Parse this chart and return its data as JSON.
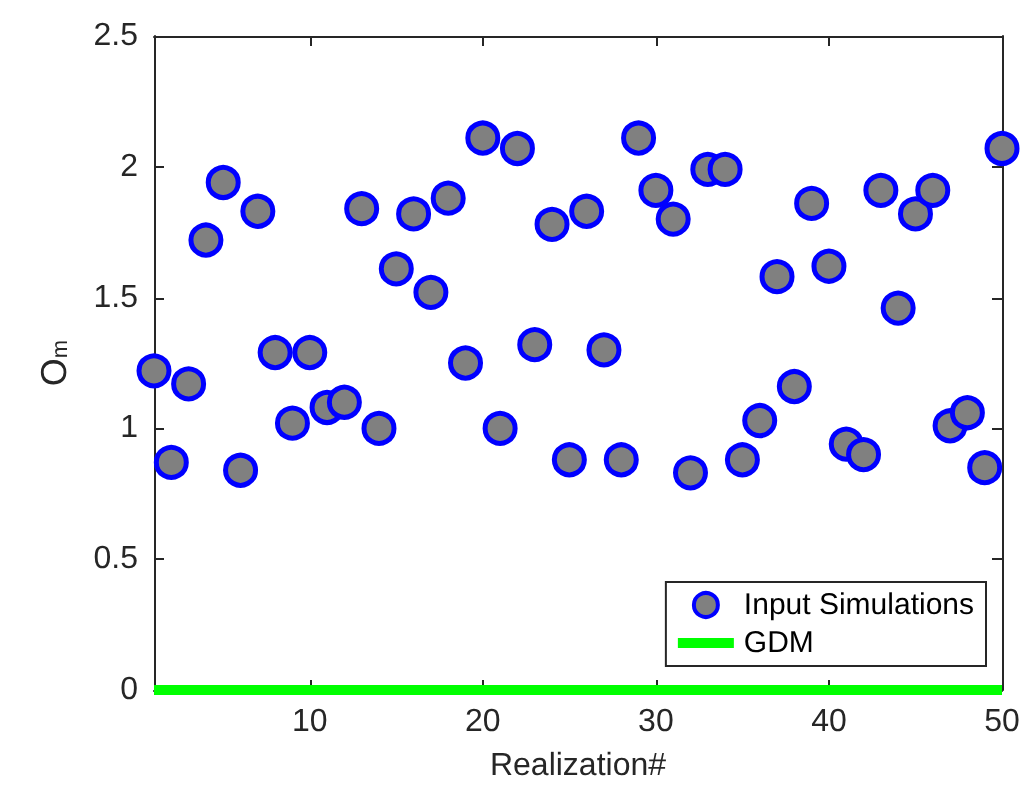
{
  "chart_data": {
    "type": "scatter",
    "xlabel": "Realization#",
    "ylabel": "O$_{m}$",
    "xlim": [
      1,
      50
    ],
    "xticks": [
      10,
      20,
      30,
      40,
      50
    ],
    "ylim": [
      0,
      2.5
    ],
    "yticks": [
      0,
      0.5,
      1,
      1.5,
      2,
      2.5
    ],
    "grid": false,
    "legend": "bottom right",
    "series": [
      {
        "name": "Input Simulations",
        "marker": "circle",
        "color": "#808080",
        "x": [
          1,
          2,
          3,
          4,
          5,
          6,
          7,
          8,
          9,
          10,
          11,
          12,
          13,
          14,
          15,
          16,
          17,
          18,
          19,
          20,
          21,
          22,
          23,
          24,
          25,
          26,
          27,
          28,
          29,
          30,
          31,
          32,
          33,
          34,
          35,
          36,
          37,
          38,
          39,
          40,
          41,
          42,
          43,
          44,
          45,
          46,
          47,
          48,
          49,
          50
        ],
        "values": [
          1.22,
          0.87,
          1.17,
          1.72,
          1.94,
          0.84,
          1.83,
          1.29,
          1.02,
          1.29,
          1.08,
          1.1,
          1.84,
          1.0,
          1.61,
          1.82,
          1.52,
          1.88,
          1.25,
          2.11,
          1.0,
          2.07,
          1.32,
          1.78,
          0.88,
          1.83,
          1.3,
          0.88,
          2.11,
          1.91,
          1.8,
          0.83,
          1.99,
          1.99,
          0.88,
          1.03,
          1.58,
          1.16,
          1.86,
          1.62,
          0.94,
          0.9,
          1.91,
          1.46,
          1.82,
          1.91,
          1.01,
          1.06,
          0.85,
          2.07
        ]
      },
      {
        "name": "GDM",
        "type": "line",
        "color": "#00ff00",
        "x": [
          1,
          50
        ],
        "values": [
          0,
          0
        ]
      }
    ]
  }
}
